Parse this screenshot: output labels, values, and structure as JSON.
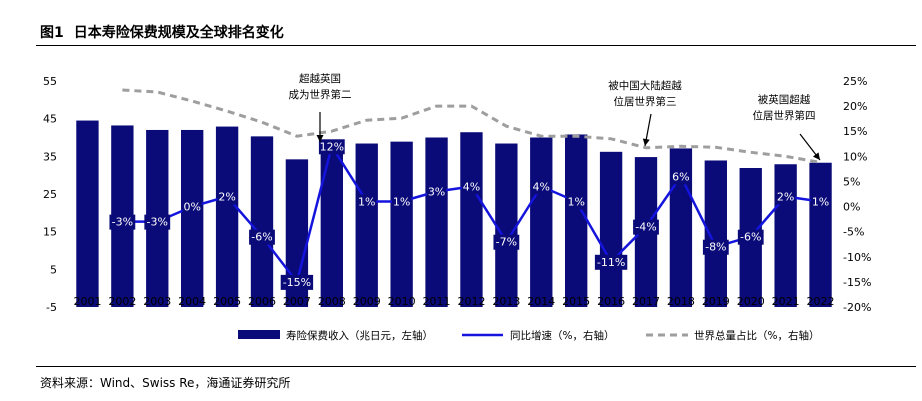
{
  "figure": {
    "label": "图1",
    "title": "日本寿险保费规模及全球排名变化",
    "source": "资料来源：Wind、Swiss Re，海通证券研究所"
  },
  "colors": {
    "bar": "#0a0a78",
    "line_yoy": "#1414dc",
    "line_share": "#9e9e9e",
    "bar_label": "#ffffff"
  },
  "chart_data": {
    "type": "bar",
    "categories": [
      "2001",
      "2002",
      "2003",
      "2004",
      "2005",
      "2006",
      "2007",
      "2008",
      "2009",
      "2010",
      "2011",
      "2012",
      "2013",
      "2014",
      "2015",
      "2016",
      "2017",
      "2018",
      "2019",
      "2020",
      "2021",
      "2022"
    ],
    "series": [
      {
        "name": "寿险保费收入（兆日元，左轴）",
        "type": "bar",
        "axis": "left",
        "values": [
          44.5,
          43.2,
          42.0,
          42.0,
          42.9,
          40.3,
          34.2,
          38.2,
          38.4,
          38.9,
          40.0,
          41.4,
          38.4,
          40.0,
          40.8,
          36.2,
          34.8,
          37.1,
          33.9,
          31.9,
          32.9,
          33.3
        ]
      },
      {
        "name": "同比增速（%，右轴）",
        "type": "line",
        "axis": "right",
        "values": [
          null,
          -3,
          -3,
          0,
          2,
          -6,
          -15,
          12,
          1,
          1,
          3,
          4,
          -7,
          4,
          1,
          -11,
          -4,
          6,
          -8,
          -6,
          2,
          1
        ],
        "labels": [
          null,
          "-3%",
          "-3%",
          "0%",
          "2%",
          "-6%",
          "-15%",
          "12%",
          "1%",
          "1%",
          "3%",
          "4%",
          "-7%",
          "4%",
          "1%",
          "-11%",
          "-4%",
          "6%",
          "-8%",
          "-6%",
          "2%",
          "1%"
        ]
      },
      {
        "name": "世界总量占比（%，右轴）",
        "type": "line",
        "style": "dashed",
        "axis": "right",
        "values": [
          null,
          23.2,
          22.8,
          21.0,
          19.0,
          16.8,
          14.0,
          15.0,
          17.2,
          17.6,
          20.0,
          20.0,
          16.0,
          14.0,
          14.0,
          13.5,
          11.7,
          12.0,
          11.8,
          10.8,
          10.0,
          8.8
        ]
      }
    ],
    "y_left": {
      "ylim": [
        -5,
        55
      ],
      "ticks": [
        "-5",
        "5",
        "15",
        "25",
        "35",
        "45",
        "55"
      ]
    },
    "y_right": {
      "ylim": [
        -20,
        25
      ],
      "ticks": [
        "-20%",
        "-15%",
        "-10%",
        "-5%",
        "0%",
        "5%",
        "10%",
        "15%",
        "20%",
        "25%"
      ]
    },
    "annotations": [
      {
        "lines": [
          "超越英国",
          "成为世界第二"
        ],
        "year": "2007"
      },
      {
        "lines": [
          "被中国大陆超越",
          "位居世界第三"
        ],
        "year": "2016"
      },
      {
        "lines": [
          "被英国超越",
          "位居世界第四"
        ],
        "year": "2022"
      }
    ],
    "legend": {
      "placement": "bottom",
      "items": [
        "寿险保费收入（兆日元，左轴）",
        "同比增速（%，右轴）",
        "世界总量占比（%，右轴）"
      ]
    },
    "grid": false
  }
}
